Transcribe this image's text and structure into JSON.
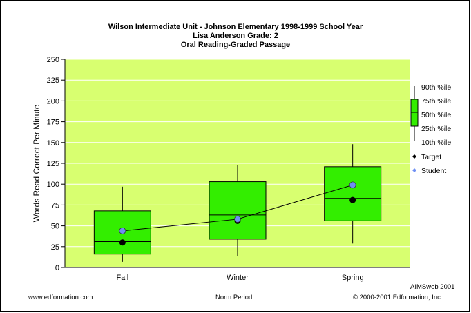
{
  "chart_data": {
    "type": "box",
    "title": "Wilson Intermediate Unit - Johnson Elementary  1998-1999 School Year",
    "subtitle_1": "Lisa Anderson  Grade: 2",
    "subtitle_2": "Oral Reading-Graded Passage",
    "xlabel": "Norm Period",
    "ylabel": "Words Read Correct Per Minute",
    "ylim": [
      0,
      250
    ],
    "yticks": [
      "0",
      "25",
      "50",
      "75",
      "100",
      "125",
      "150",
      "175",
      "200",
      "225",
      "250"
    ],
    "grid": true,
    "categories": [
      "Fall",
      "Winter",
      "Spring"
    ],
    "boxes": [
      {
        "p10": 15,
        "p25": 16,
        "p50": 31,
        "p75": 68,
        "p90": 97
      },
      {
        "p10": 22,
        "p25": 34,
        "p50": 63,
        "p75": 103,
        "p90": 123
      },
      {
        "p10": 37,
        "p25": 56,
        "p50": 83,
        "p75": 121,
        "p90": 148
      }
    ],
    "target": [
      30,
      56,
      81
    ],
    "student": [
      44,
      58,
      99
    ],
    "legend": {
      "percentiles": [
        "90th %ile",
        "75th %ile",
        "50th %ile",
        "25th %ile",
        "10th %ile"
      ],
      "target_label": "Target",
      "student_label": "Student"
    },
    "colors": {
      "plot_bg": "#d8ff70",
      "box_fill": "#33ee00",
      "target": "#000000",
      "student": "#6f8ff4"
    }
  },
  "footer": {
    "brand": "AIMSweb 2001",
    "website": "www.edformation.com",
    "copyright": "© 2000-2001 Edformation, Inc."
  }
}
